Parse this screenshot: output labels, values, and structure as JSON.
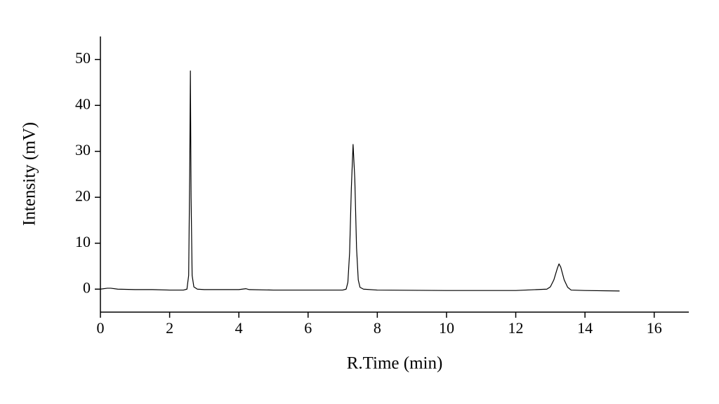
{
  "chart_data": {
    "type": "line",
    "x_label": "R.Time (min)",
    "y_label": "Intensity (mV)",
    "x": [
      0,
      0.2,
      0.3,
      0.5,
      1,
      1.5,
      2,
      2.4,
      2.5,
      2.55,
      2.58,
      2.6,
      2.62,
      2.65,
      2.7,
      2.8,
      3,
      4,
      4.2,
      4.3,
      5,
      6,
      7,
      7.1,
      7.15,
      7.2,
      7.25,
      7.3,
      7.35,
      7.4,
      7.45,
      7.5,
      7.6,
      8,
      10,
      12,
      12.9,
      13,
      13.1,
      13.2,
      13.25,
      13.3,
      13.4,
      13.5,
      13.6,
      14,
      15
    ],
    "values": [
      0,
      0.2,
      0.2,
      0,
      -0.1,
      -0.1,
      -0.2,
      -0.2,
      0,
      3,
      25,
      47.5,
      20,
      3,
      0.5,
      0,
      -0.1,
      -0.1,
      0.1,
      -0.1,
      -0.2,
      -0.2,
      -0.2,
      0,
      1.5,
      8,
      22,
      31.5,
      24,
      9,
      2,
      0.4,
      0,
      -0.2,
      -0.3,
      -0.3,
      0,
      0.5,
      2,
      4.5,
      5.5,
      4.8,
      2,
      0.4,
      -0.2,
      -0.3,
      -0.4
    ],
    "color": "#000000",
    "xlim": [
      0,
      17
    ],
    "xticks": [
      0,
      2,
      4,
      6,
      8,
      10,
      12,
      14,
      16
    ],
    "ylim": [
      -5,
      55
    ],
    "yticks": [
      0,
      10,
      20,
      30,
      40,
      50
    ],
    "grid": false
  }
}
